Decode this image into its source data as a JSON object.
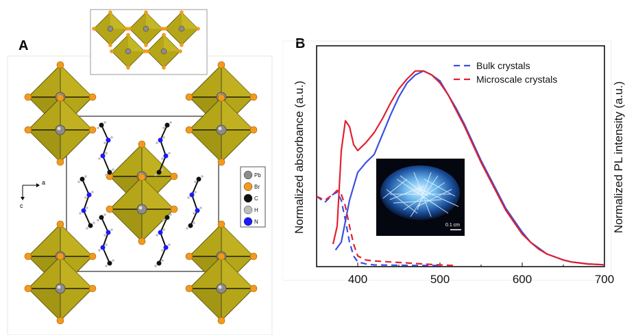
{
  "panel_a": {
    "label": "A",
    "axes": {
      "a": "a",
      "c": "c"
    },
    "legend": [
      {
        "label": "Pb",
        "color": "#8c8c8c"
      },
      {
        "label": "Br",
        "color": "#f39a1c"
      },
      {
        "label": "C",
        "color": "#111111"
      },
      {
        "label": "H",
        "color": "#bdbdbd"
      },
      {
        "label": "N",
        "color": "#1a1aff"
      }
    ],
    "octahedron_color": "#b5a619"
  },
  "panel_b": {
    "label": "B",
    "inset_scale_label": "0.1 cm"
  },
  "chart_data": {
    "type": "line",
    "xlabel": "",
    "ylabel_left": "Normalized absorbance (a.u.)",
    "ylabel_right": "Normalized PL intensity (a.u.)",
    "xlim": [
      350,
      700
    ],
    "ylim": [
      0,
      1
    ],
    "x_ticks": [
      400,
      500,
      600,
      700
    ],
    "grid": false,
    "legend_position": "top-right",
    "series": [
      {
        "name": "Bulk crystals",
        "kind": "PL",
        "color": "#3a4fe0",
        "style": "solid",
        "x": [
          373,
          380,
          390,
          400,
          410,
          420,
          430,
          440,
          450,
          460,
          470,
          480,
          490,
          500,
          510,
          520,
          530,
          540,
          550,
          560,
          570,
          580,
          590,
          600,
          610,
          620,
          630,
          640,
          650,
          660,
          670,
          680,
          690,
          700
        ],
        "y": [
          0.08,
          0.12,
          0.33,
          0.47,
          0.52,
          0.56,
          0.66,
          0.76,
          0.85,
          0.92,
          0.96,
          0.98,
          0.96,
          0.93,
          0.86,
          0.79,
          0.71,
          0.62,
          0.53,
          0.45,
          0.37,
          0.29,
          0.23,
          0.17,
          0.12,
          0.09,
          0.06,
          0.045,
          0.03,
          0.02,
          0.015,
          0.01,
          0.008,
          0.006
        ]
      },
      {
        "name": "Microscale crystals",
        "kind": "PL",
        "color": "#e0202f",
        "style": "solid",
        "x": [
          370,
          375,
          380,
          385,
          390,
          395,
          400,
          405,
          410,
          420,
          430,
          440,
          450,
          460,
          470,
          480,
          490,
          500,
          510,
          520,
          530,
          540,
          550,
          560,
          570,
          580,
          590,
          600,
          610,
          620,
          630,
          640,
          650,
          660,
          670,
          680,
          690,
          700
        ],
        "y": [
          0.11,
          0.2,
          0.58,
          0.73,
          0.7,
          0.61,
          0.58,
          0.6,
          0.62,
          0.67,
          0.74,
          0.82,
          0.89,
          0.94,
          0.98,
          0.98,
          0.96,
          0.92,
          0.86,
          0.78,
          0.7,
          0.61,
          0.52,
          0.44,
          0.36,
          0.28,
          0.22,
          0.16,
          0.12,
          0.085,
          0.06,
          0.045,
          0.03,
          0.02,
          0.015,
          0.01,
          0.008,
          0.006
        ]
      },
      {
        "name": "Bulk crystals",
        "kind": "absorbance",
        "color": "#3a4fe0",
        "style": "dashed",
        "x": [
          350,
          360,
          370,
          375,
          380,
          385,
          390,
          395,
          400,
          410,
          420,
          440,
          460,
          480,
          500
        ],
        "y": [
          0.35,
          0.32,
          0.36,
          0.37,
          0.33,
          0.23,
          0.12,
          0.05,
          0.02,
          0.01,
          0.005,
          0.004,
          0.003,
          0.002,
          0.002
        ]
      },
      {
        "name": "Microscale crystals",
        "kind": "absorbance",
        "color": "#e0202f",
        "style": "dashed",
        "x": [
          350,
          360,
          370,
          375,
          380,
          385,
          390,
          395,
          400,
          410,
          420,
          440,
          460,
          480,
          500,
          520
        ],
        "y": [
          0.35,
          0.33,
          0.36,
          0.38,
          0.36,
          0.3,
          0.2,
          0.11,
          0.05,
          0.03,
          0.025,
          0.02,
          0.015,
          0.01,
          0.005,
          0.002
        ]
      }
    ]
  }
}
